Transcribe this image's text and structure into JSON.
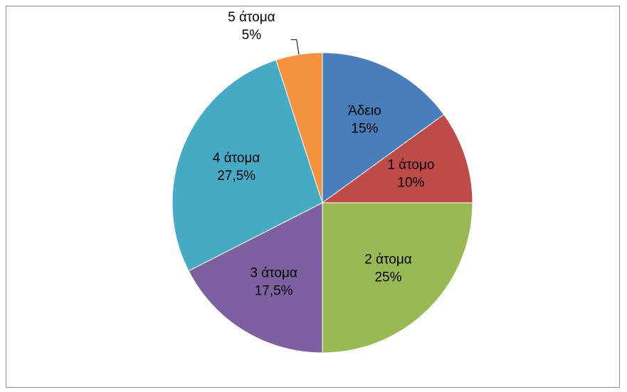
{
  "chart_data": {
    "type": "pie",
    "categories": [
      "Άδειο",
      "1 άτομο",
      "2 άτομα",
      "3 άτομα",
      "4 άτομα",
      "5 άτομα"
    ],
    "values": [
      15,
      10,
      25,
      17.5,
      27.5,
      5
    ],
    "value_labels": [
      "15%",
      "10%",
      "25%",
      "17,5%",
      "27,5%",
      "5%"
    ],
    "colors": [
      "#4a7ebb",
      "#be4b48",
      "#98b954",
      "#7d60a0",
      "#46aac5",
      "#f69240"
    ]
  }
}
